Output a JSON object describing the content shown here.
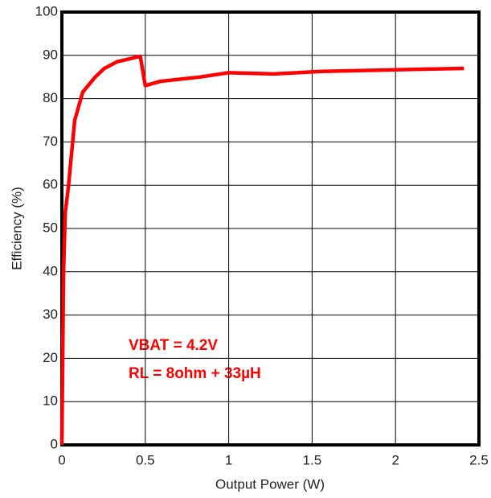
{
  "chart_data": {
    "type": "line",
    "x_label": "Output Power (W)",
    "y_label": "Efficiency (%)",
    "annotations": [
      "VBAT = 4.2V",
      "RL = 8ohm + 33µH"
    ],
    "xlim": [
      0,
      2.5
    ],
    "xticks": [
      0,
      0.5,
      1,
      1.5,
      2,
      2.5
    ],
    "ylim": [
      0,
      100
    ],
    "yticks": [
      0,
      10,
      20,
      30,
      40,
      50,
      60,
      70,
      80,
      90,
      100
    ],
    "grid": true,
    "x": [
      0,
      0.01,
      0.02,
      0.04,
      0.077,
      0.125,
      0.2,
      0.255,
      0.33,
      0.47,
      0.5,
      0.59,
      0.83,
      1.0,
      1.27,
      1.56,
      2.41
    ],
    "series": [
      {
        "color": "#ff0000",
        "values": [
          0,
          40,
          53.5,
          60,
          75,
          81.5,
          85,
          87,
          88.5,
          89.8,
          83,
          84,
          85,
          86,
          85.7,
          86.3,
          87
        ]
      }
    ]
  }
}
